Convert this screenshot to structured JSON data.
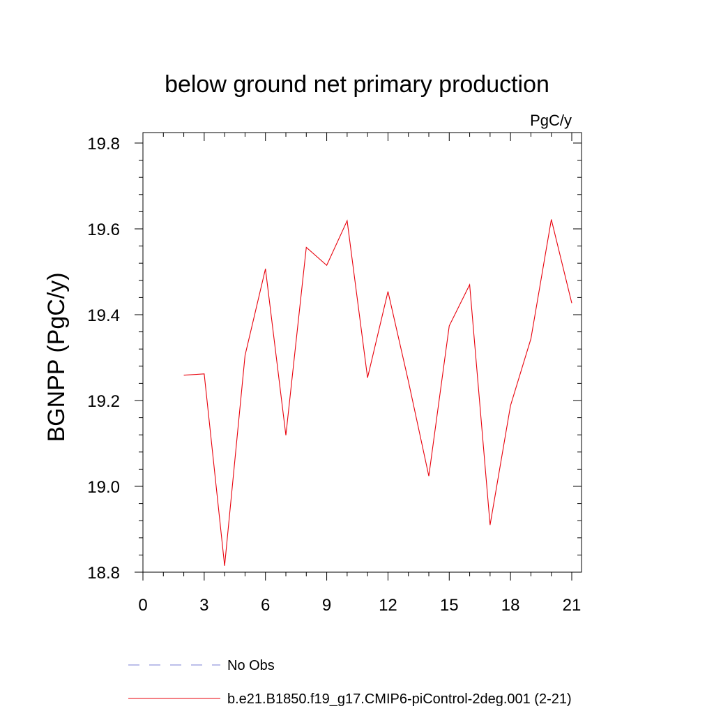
{
  "chart_data": {
    "type": "line",
    "title": "below ground net primary production",
    "units_label": "PgC/y",
    "xlabel": "",
    "ylabel": "BGNPP  (PgC/y)",
    "xlim": [
      0,
      21
    ],
    "ylim": [
      18.8,
      19.8
    ],
    "xticks": [
      0,
      3,
      6,
      9,
      12,
      15,
      18,
      21
    ],
    "xtick_labels": [
      "0",
      "3",
      "6",
      "9",
      "12",
      "15",
      "18",
      "21"
    ],
    "yticks": [
      18.8,
      19.0,
      19.2,
      19.4,
      19.6,
      19.8
    ],
    "ytick_labels": [
      "18.8",
      "19.0",
      "19.2",
      "19.4",
      "19.6",
      "19.8"
    ],
    "grid": false,
    "legend_position": "bottom",
    "series": [
      {
        "name": "b.e21.B1850.f19_g17.CMIP6-piControl-2deg.001 (2-21)",
        "color": "#e8000b",
        "style": "solid",
        "x": [
          2,
          3,
          4,
          5,
          6,
          7,
          8,
          9,
          10,
          11,
          12,
          13,
          14,
          15,
          16,
          17,
          18,
          19,
          20,
          21
        ],
        "y": [
          19.259,
          19.262,
          18.815,
          19.305,
          19.507,
          19.119,
          19.557,
          19.515,
          19.619,
          19.253,
          19.454,
          19.245,
          19.024,
          19.374,
          19.47,
          18.91,
          19.188,
          19.344,
          19.622,
          19.427
        ]
      }
    ],
    "legend": [
      {
        "label": "No Obs",
        "color": "#7b7fd4",
        "style": "dashed"
      },
      {
        "label": "b.e21.B1850.f19_g17.CMIP6-piControl-2deg.001 (2-21)",
        "color": "#e8000b",
        "style": "solid"
      }
    ]
  }
}
